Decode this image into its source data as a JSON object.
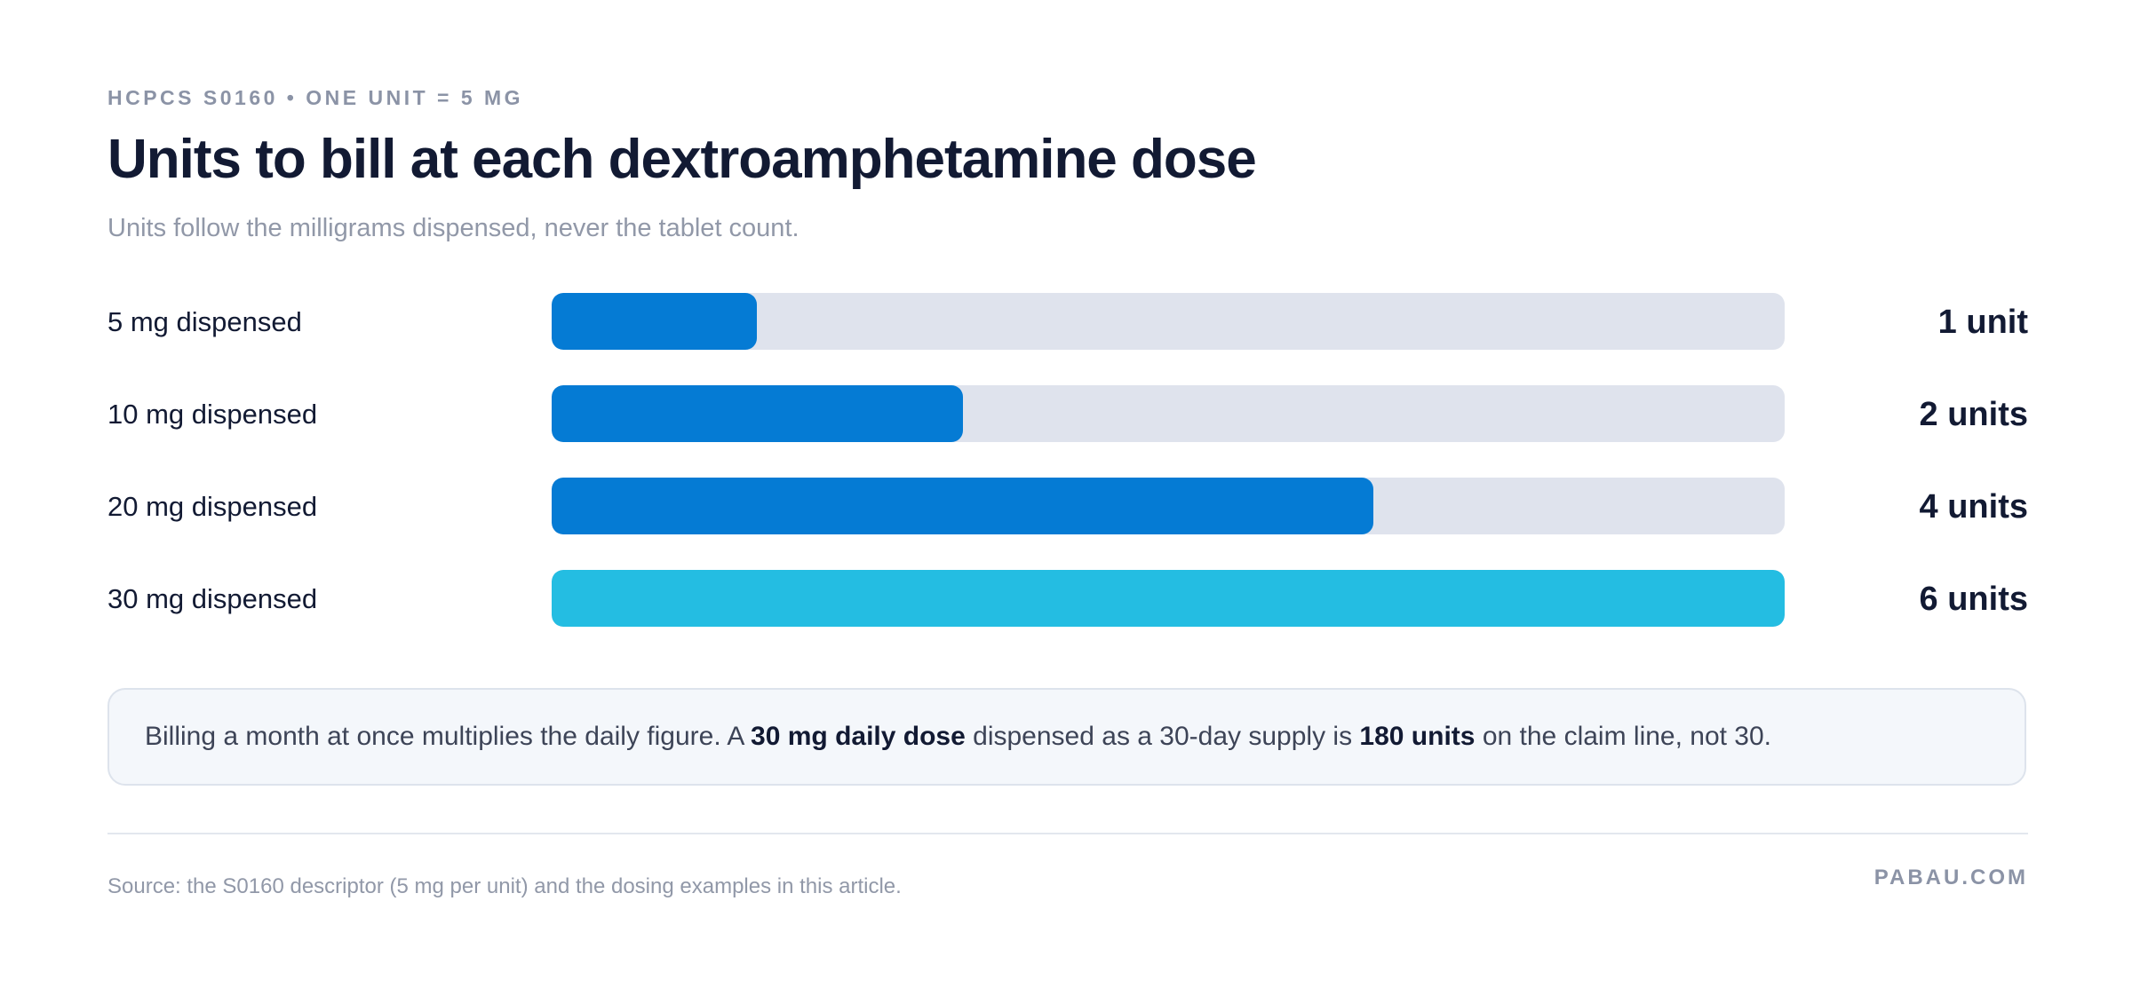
{
  "header": {
    "eyebrow": "HCPCS S0160 • ONE UNIT = 5 MG",
    "title": "Units to bill at each dextroamphetamine dose",
    "subtitle": "Units follow the milligrams dispensed, never the tablet count."
  },
  "chart_data": {
    "type": "bar",
    "orientation": "horizontal",
    "title": "Units to bill at each dextroamphetamine dose",
    "subtitle": "Units follow the milligrams dispensed, never the tablet count.",
    "categories": [
      "5 mg dispensed",
      "10 mg dispensed",
      "20 mg dispensed",
      "30 mg dispensed"
    ],
    "values": [
      1,
      2,
      4,
      6
    ],
    "value_labels": [
      "1 unit",
      "2 units",
      "4 units",
      "6 units"
    ],
    "xlim": [
      0,
      6
    ],
    "grid": false,
    "legend": "none",
    "colors": {
      "bar": "#057bd4",
      "highlight": "#24bde2",
      "track": "#dfe3ed"
    },
    "highlight_index": 3
  },
  "note": {
    "text_1": "Billing a month at once multiplies the daily figure. A ",
    "bold_1": "30 mg daily dose",
    "text_2": " dispensed as a 30-day supply is ",
    "bold_2": "180 units",
    "text_3": " on the claim line, not 30."
  },
  "footer": {
    "source": "Source: the S0160 descriptor (5 mg per unit) and the dosing examples in this article.",
    "brand": "PABAU.COM"
  }
}
